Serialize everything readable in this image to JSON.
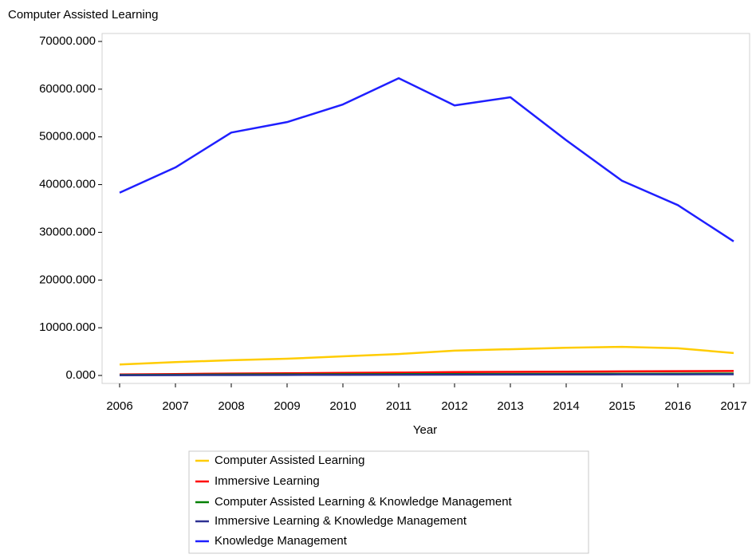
{
  "chart_data": {
    "type": "line",
    "title": "Computer Assisted Learning",
    "x_label": "Year",
    "categories": [
      "2006",
      "2007",
      "2008",
      "2009",
      "2010",
      "2011",
      "2012",
      "2013",
      "2014",
      "2015",
      "2016",
      "2017"
    ],
    "series": [
      {
        "name": "Computer Assisted Learning",
        "color": "#ffcc00",
        "values": [
          2300,
          2800,
          3200,
          3500,
          4000,
          4500,
          5200,
          5500,
          5800,
          6000,
          5700,
          4700
        ]
      },
      {
        "name": "Immersive Learning",
        "color": "#ff0000",
        "values": [
          200,
          300,
          400,
          450,
          550,
          600,
          700,
          750,
          800,
          850,
          900,
          950
        ]
      },
      {
        "name": "Computer Assisted Learning & Knowledge Management",
        "color": "#008000",
        "values": [
          100,
          150,
          200,
          220,
          250,
          280,
          300,
          320,
          340,
          360,
          380,
          400
        ]
      },
      {
        "name": "Immersive Learning & Knowledge Management",
        "color": "#2e3192",
        "values": [
          50,
          70,
          90,
          110,
          130,
          150,
          170,
          190,
          200,
          220,
          240,
          250
        ]
      },
      {
        "name": "Knowledge Management",
        "color": "#1f1fff",
        "values": [
          38300,
          43600,
          50900,
          53100,
          56800,
          62300,
          56600,
          58300,
          49300,
          40800,
          35700,
          28100
        ]
      }
    ],
    "ylim": [
      0,
      70000
    ],
    "yticks": [
      {
        "value": 0,
        "label": "0.000"
      },
      {
        "value": 10000,
        "label": "10000.000"
      },
      {
        "value": 20000,
        "label": "20000.000"
      },
      {
        "value": 30000,
        "label": "30000.000"
      },
      {
        "value": 40000,
        "label": "40000.000"
      },
      {
        "value": 50000,
        "label": "50000.000"
      },
      {
        "value": 60000,
        "label": "60000.000"
      },
      {
        "value": 70000,
        "label": "70000.000"
      }
    ],
    "legend": "bottom"
  }
}
